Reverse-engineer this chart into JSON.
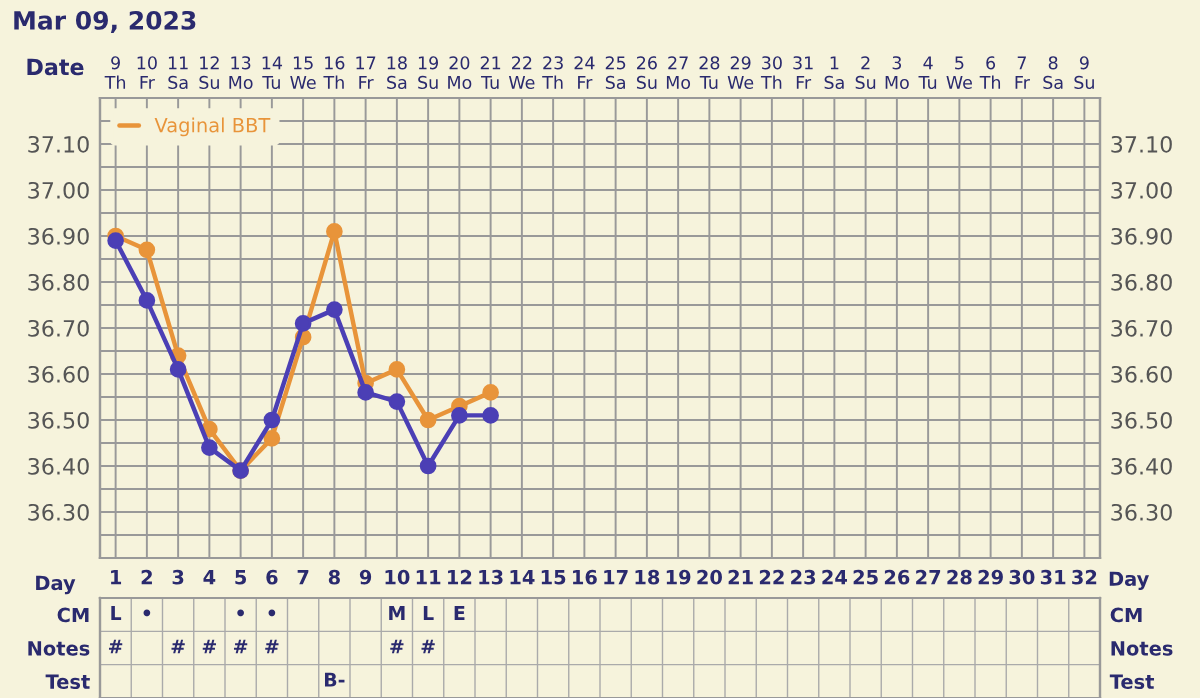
{
  "chart_data": [
    {
      "type": "line",
      "title": "Mar 09, 2023",
      "xlabel": "Date",
      "legend": "top left",
      "marker": "circle",
      "line_style": "solid",
      "grid": true,
      "categories": [
        "9\nTh",
        "10\nFr",
        "11\nSa",
        "12\nSu",
        "13\nMo",
        "14\nTu",
        "15\nWe",
        "16\nTh",
        "17\nFr",
        "18\nSa",
        "19\nSu",
        "20\nMo",
        "21\nTu",
        "22\nWe",
        "23\nTh",
        "24\nFr",
        "25\nSa",
        "26\nSu",
        "27\nMo",
        "28\nTu",
        "29\nWe",
        "30\nTh",
        "31\nFr",
        "1\nSa",
        "2\nSu",
        "3\nMo",
        "4\nTu",
        "5\nWe",
        "6\nTh",
        "7\nFr",
        "8\nSa",
        "9\nSu"
      ],
      "ylim": [
        36.2,
        37.2
      ],
      "yticks": [
        {
          "value": 36.25,
          "label": null
        },
        {
          "value": 36.3,
          "label": "36.30"
        },
        {
          "value": 36.35,
          "label": null
        },
        {
          "value": 36.4,
          "label": "36.40"
        },
        {
          "value": 36.45,
          "label": null
        },
        {
          "value": 36.5,
          "label": "36.50"
        },
        {
          "value": 36.55,
          "label": null
        },
        {
          "value": 36.6,
          "label": "36.60"
        },
        {
          "value": 36.65,
          "label": null
        },
        {
          "value": 36.7,
          "label": "36.70"
        },
        {
          "value": 36.75,
          "label": null
        },
        {
          "value": 36.8,
          "label": "36.80"
        },
        {
          "value": 36.85,
          "label": null
        },
        {
          "value": 36.9,
          "label": "36.90"
        },
        {
          "value": 36.95,
          "label": null
        },
        {
          "value": 37.0,
          "label": "37.00"
        },
        {
          "value": 37.05,
          "label": null
        },
        {
          "value": 37.1,
          "label": "37.10"
        },
        {
          "value": 37.15,
          "label": null
        }
      ],
      "y2lim": [
        36.2,
        37.2
      ],
      "y2ticks": [
        {
          "value": 36.25,
          "label": null
        },
        {
          "value": 36.3,
          "label": "36.30"
        },
        {
          "value": 36.35,
          "label": null
        },
        {
          "value": 36.4,
          "label": "36.40"
        },
        {
          "value": 36.45,
          "label": null
        },
        {
          "value": 36.5,
          "label": "36.50"
        },
        {
          "value": 36.55,
          "label": null
        },
        {
          "value": 36.6,
          "label": "36.60"
        },
        {
          "value": 36.65,
          "label": null
        },
        {
          "value": 36.7,
          "label": "36.70"
        },
        {
          "value": 36.75,
          "label": null
        },
        {
          "value": 36.8,
          "label": "36.80"
        },
        {
          "value": 36.85,
          "label": null
        },
        {
          "value": 36.9,
          "label": "36.90"
        },
        {
          "value": 36.95,
          "label": null
        },
        {
          "value": 37.0,
          "label": "37.00"
        },
        {
          "value": 37.05,
          "label": null
        },
        {
          "value": 37.1,
          "label": "37.10"
        },
        {
          "value": 37.15,
          "label": null
        }
      ],
      "series": [
        {
          "name": "Vaginal BBT",
          "color": "#e8943a",
          "values": [
            36.9,
            36.87,
            36.64,
            36.48,
            36.39,
            36.46,
            36.68,
            36.91,
            36.58,
            36.61,
            36.5,
            36.53,
            36.56,
            null,
            null,
            null,
            null,
            null,
            null,
            null,
            null,
            null,
            null,
            null,
            null,
            null,
            null,
            null,
            null,
            null,
            null,
            null
          ]
        },
        {
          "color": "#4b3fb5",
          "values": [
            36.89,
            36.76,
            36.61,
            36.44,
            36.39,
            36.5,
            36.71,
            36.74,
            36.56,
            36.54,
            36.4,
            36.51,
            36.51,
            null,
            null,
            null,
            null,
            null,
            null,
            null,
            null,
            null,
            null,
            null,
            null,
            null,
            null,
            null,
            null,
            null,
            null,
            null
          ]
        }
      ]
    },
    {
      "type": "heatmap",
      "xlabel": "Day",
      "annotations": [
        "Day"
      ],
      "categories": [
        "1",
        "2",
        "3",
        "4",
        "5",
        "6",
        "7",
        "8",
        "9",
        "10",
        "11",
        "12",
        "13",
        "14",
        "15",
        "16",
        "17",
        "18",
        "19",
        "20",
        "21",
        "22",
        "23",
        "24",
        "25",
        "26",
        "27",
        "28",
        "29",
        "30",
        "31",
        "32"
      ],
      "y_categories": [
        "CM",
        "Notes",
        "Test"
      ],
      "y2_categories": [
        "CM",
        "Notes",
        "Test"
      ],
      "cells": [
        [
          null,
          null,
          null,
          null,
          null,
          null,
          null,
          null,
          null,
          null,
          null,
          null,
          null,
          null,
          null,
          null,
          null,
          null,
          null,
          null,
          null,
          null,
          null,
          null,
          null,
          null,
          null,
          null,
          null,
          null,
          null,
          null
        ],
        [
          null,
          null,
          null,
          null,
          null,
          null,
          null,
          null,
          null,
          null,
          null,
          null,
          null,
          null,
          null,
          null,
          null,
          null,
          null,
          null,
          null,
          null,
          null,
          null,
          null,
          null,
          null,
          null,
          null,
          null,
          null,
          null
        ],
        [
          null,
          null,
          null,
          null,
          null,
          null,
          null,
          null,
          null,
          null,
          null,
          null,
          null,
          null,
          null,
          null,
          null,
          null,
          null,
          null,
          null,
          null,
          null,
          null,
          null,
          null,
          null,
          null,
          null,
          null,
          null,
          null
        ]
      ],
      "cell_labels": [
        [
          "L",
          "•",
          null,
          null,
          "•",
          "•",
          null,
          null,
          null,
          "M",
          "L",
          "E",
          null,
          null,
          null,
          null,
          null,
          null,
          null,
          null,
          null,
          null,
          null,
          null,
          null,
          null,
          null,
          null,
          null,
          null,
          null,
          null
        ],
        [
          "#",
          null,
          "#",
          "#",
          "#",
          "#",
          null,
          null,
          null,
          "#",
          "#",
          null,
          null,
          null,
          null,
          null,
          null,
          null,
          null,
          null,
          null,
          null,
          null,
          null,
          null,
          null,
          null,
          null,
          null,
          null,
          null,
          null
        ],
        [
          null,
          null,
          null,
          null,
          null,
          null,
          null,
          "B-",
          null,
          null,
          null,
          null,
          null,
          null,
          null,
          null,
          null,
          null,
          null,
          null,
          null,
          null,
          null,
          null,
          null,
          null,
          null,
          null,
          null,
          null,
          null,
          null
        ]
      ]
    }
  ]
}
